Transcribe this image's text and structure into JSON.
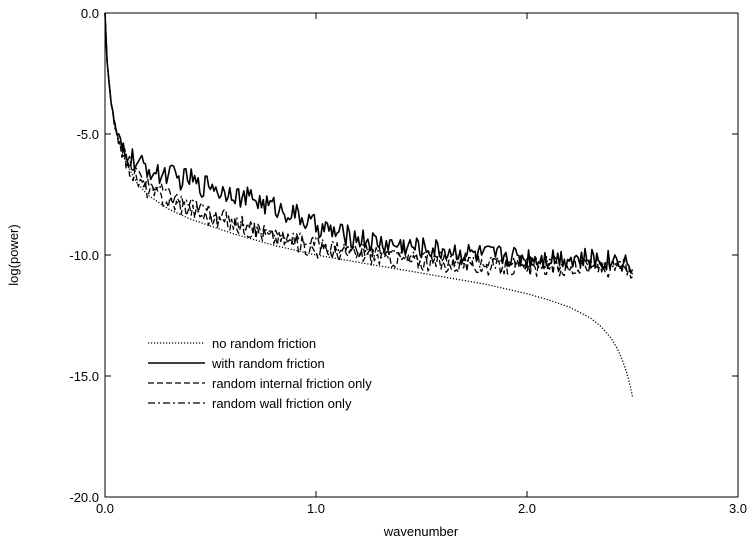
{
  "chart_data": {
    "type": "line",
    "title": "",
    "xlabel": "wavenumber",
    "ylabel": "log(power)",
    "xlim": [
      0.0,
      3.0
    ],
    "ylim": [
      -20.0,
      0.0
    ],
    "xticks": [
      0.0,
      1.0,
      2.0,
      3.0
    ],
    "xtick_labels": [
      "0.0",
      "1.0",
      "2.0",
      "3.0"
    ],
    "yticks": [
      0.0,
      -5.0,
      -10.0,
      -15.0,
      -20.0
    ],
    "ytick_labels": [
      "0.0",
      "-5.0",
      "-10.0",
      "-15.0",
      "-20.0"
    ],
    "grid": false,
    "legend_position": "lower-left",
    "series": [
      {
        "name": "no random friction",
        "dash": "dotted",
        "x": [
          0.0,
          0.01,
          0.03,
          0.05,
          0.08,
          0.1,
          0.15,
          0.2,
          0.3,
          0.4,
          0.5,
          0.6,
          0.7,
          0.8,
          0.9,
          1.0,
          1.1,
          1.2,
          1.3,
          1.4,
          1.5,
          1.6,
          1.7,
          1.8,
          1.9,
          2.0,
          2.1,
          2.2,
          2.3,
          2.35,
          2.4,
          2.43,
          2.45,
          2.47,
          2.48,
          2.49,
          2.5
        ],
        "y": [
          0.0,
          -2.0,
          -3.8,
          -4.8,
          -5.7,
          -6.2,
          -7.0,
          -7.5,
          -8.1,
          -8.5,
          -8.8,
          -9.1,
          -9.35,
          -9.6,
          -9.8,
          -10.0,
          -10.15,
          -10.3,
          -10.45,
          -10.6,
          -10.75,
          -10.9,
          -11.05,
          -11.2,
          -11.4,
          -11.6,
          -11.85,
          -12.15,
          -12.6,
          -12.95,
          -13.45,
          -13.9,
          -14.3,
          -14.8,
          -15.1,
          -15.45,
          -15.85
        ]
      },
      {
        "name": "with random friction",
        "dash": "solid",
        "x": [
          0.0,
          0.01,
          0.03,
          0.05,
          0.08,
          0.1,
          0.13,
          0.15,
          0.2,
          0.25,
          0.3,
          0.35,
          0.4,
          0.45,
          0.5,
          0.55,
          0.6,
          0.65,
          0.7,
          0.75,
          0.8,
          0.85,
          0.9,
          0.95,
          1.0,
          1.1,
          1.2,
          1.3,
          1.4,
          1.5,
          1.6,
          1.7,
          1.8,
          1.9,
          2.0,
          2.1,
          2.2,
          2.3,
          2.4,
          2.45,
          2.5
        ],
        "y": [
          0.0,
          -2.0,
          -3.8,
          -4.8,
          -5.6,
          -6.0,
          -6.0,
          -6.2,
          -6.4,
          -6.7,
          -6.6,
          -6.9,
          -6.8,
          -7.2,
          -7.0,
          -7.4,
          -7.3,
          -7.7,
          -7.6,
          -7.9,
          -8.0,
          -8.2,
          -8.3,
          -8.6,
          -8.8,
          -9.1,
          -9.3,
          -9.5,
          -9.6,
          -9.7,
          -9.8,
          -9.9,
          -10.0,
          -10.0,
          -10.1,
          -10.1,
          -10.1,
          -10.2,
          -10.2,
          -10.1,
          -10.6
        ]
      },
      {
        "name": "random internal friction only",
        "dash": "dashed",
        "x": [
          0.0,
          0.01,
          0.03,
          0.05,
          0.08,
          0.1,
          0.15,
          0.2,
          0.3,
          0.4,
          0.5,
          0.6,
          0.7,
          0.8,
          0.9,
          1.0,
          1.1,
          1.2,
          1.3,
          1.4,
          1.5,
          1.6,
          1.7,
          1.8,
          1.9,
          2.0,
          2.1,
          2.2,
          2.3,
          2.4,
          2.45,
          2.5
        ],
        "y": [
          0.0,
          -2.0,
          -3.8,
          -4.8,
          -5.7,
          -6.2,
          -6.9,
          -7.3,
          -7.8,
          -8.1,
          -8.5,
          -8.7,
          -9.0,
          -9.3,
          -9.5,
          -9.8,
          -9.9,
          -10.0,
          -10.1,
          -10.2,
          -10.3,
          -10.4,
          -10.4,
          -10.5,
          -10.5,
          -10.6,
          -10.5,
          -10.6,
          -10.5,
          -10.6,
          -10.4,
          -10.9
        ]
      },
      {
        "name": "random wall friction only",
        "dash": "dashdot",
        "x": [
          0.0,
          0.01,
          0.03,
          0.05,
          0.08,
          0.1,
          0.15,
          0.2,
          0.3,
          0.4,
          0.5,
          0.6,
          0.7,
          0.8,
          0.9,
          1.0,
          1.1,
          1.2,
          1.3,
          1.4,
          1.5,
          1.6,
          1.7,
          1.8,
          1.9,
          2.0,
          2.1,
          2.2,
          2.3,
          2.4,
          2.45,
          2.5
        ],
        "y": [
          0.0,
          -2.0,
          -3.8,
          -4.8,
          -5.5,
          -6.0,
          -6.6,
          -7.0,
          -7.5,
          -7.9,
          -8.2,
          -8.5,
          -8.8,
          -9.1,
          -9.3,
          -9.5,
          -9.7,
          -9.8,
          -9.9,
          -10.0,
          -10.1,
          -10.15,
          -10.2,
          -10.25,
          -10.3,
          -10.3,
          -10.35,
          -10.35,
          -10.4,
          -10.4,
          -10.3,
          -10.8
        ]
      }
    ]
  }
}
